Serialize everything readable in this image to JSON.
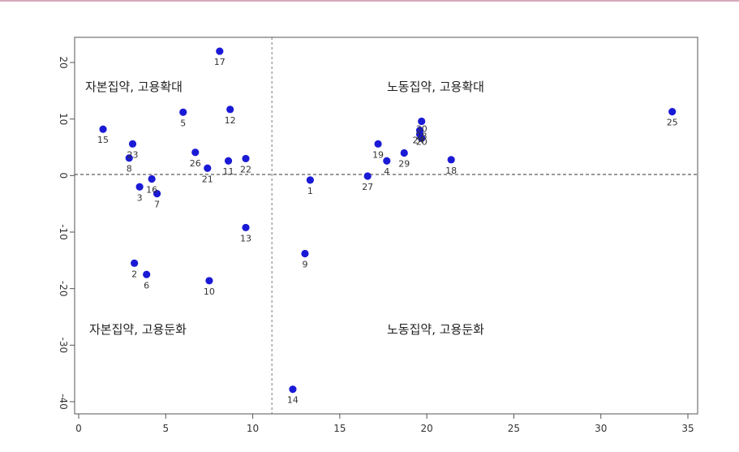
{
  "chart_data": {
    "type": "scatter",
    "title": "",
    "xlabel": "",
    "ylabel": "",
    "xlim": [
      0,
      35
    ],
    "ylim": [
      -40,
      22
    ],
    "x_ticks": [
      0,
      5,
      10,
      15,
      20,
      25,
      30,
      35
    ],
    "y_ticks": [
      -40,
      -30,
      -20,
      -10,
      0,
      10,
      20
    ],
    "reference_lines": {
      "x": 11.1,
      "y": 0.2
    },
    "point_color": "#1a1ad6",
    "quadrant_labels": {
      "top_left": "자본집약, 고용확대",
      "top_right": "노동집약, 고용확대",
      "bottom_left": "자본집약, 고용둔화",
      "bottom_right": "노동집약, 고용둔화"
    },
    "points": [
      {
        "label": "1",
        "x": 13.3,
        "y": -0.8
      },
      {
        "label": "2",
        "x": 3.2,
        "y": -15.5
      },
      {
        "label": "3",
        "x": 3.5,
        "y": -2.0
      },
      {
        "label": "4",
        "x": 17.7,
        "y": 2.6
      },
      {
        "label": "5",
        "x": 6.0,
        "y": 11.2
      },
      {
        "label": "6",
        "x": 3.9,
        "y": -17.5
      },
      {
        "label": "7",
        "x": 4.5,
        "y": -3.2
      },
      {
        "label": "8",
        "x": 2.9,
        "y": 3.1
      },
      {
        "label": "9",
        "x": 13.0,
        "y": -13.8
      },
      {
        "label": "10",
        "x": 7.5,
        "y": -18.6
      },
      {
        "label": "11",
        "x": 8.6,
        "y": 2.6
      },
      {
        "label": "12",
        "x": 8.7,
        "y": 11.7
      },
      {
        "label": "13",
        "x": 9.6,
        "y": -9.2
      },
      {
        "label": "14",
        "x": 12.3,
        "y": -37.8
      },
      {
        "label": "15",
        "x": 1.4,
        "y": 8.2
      },
      {
        "label": "16",
        "x": 4.2,
        "y": -0.6
      },
      {
        "label": "17",
        "x": 8.1,
        "y": 22.0
      },
      {
        "label": "18",
        "x": 21.4,
        "y": 2.8
      },
      {
        "label": "19",
        "x": 17.2,
        "y": 5.6
      },
      {
        "label": "20",
        "x": 19.7,
        "y": 6.6
      },
      {
        "label": "21",
        "x": 7.4,
        "y": 1.3
      },
      {
        "label": "22",
        "x": 9.6,
        "y": 3.0
      },
      {
        "label": "23",
        "x": 3.1,
        "y": 5.6
      },
      {
        "label": "24",
        "x": 19.6,
        "y": 7.3
      },
      {
        "label": "25",
        "x": 34.1,
        "y": 11.3
      },
      {
        "label": "26",
        "x": 6.7,
        "y": 4.1
      },
      {
        "label": "27",
        "x": 16.6,
        "y": -0.1
      },
      {
        "label": "28",
        "x": 19.6,
        "y": 8.0
      },
      {
        "label": "29",
        "x": 18.7,
        "y": 4.0
      },
      {
        "label": "30",
        "x": 19.7,
        "y": 9.6
      }
    ]
  }
}
